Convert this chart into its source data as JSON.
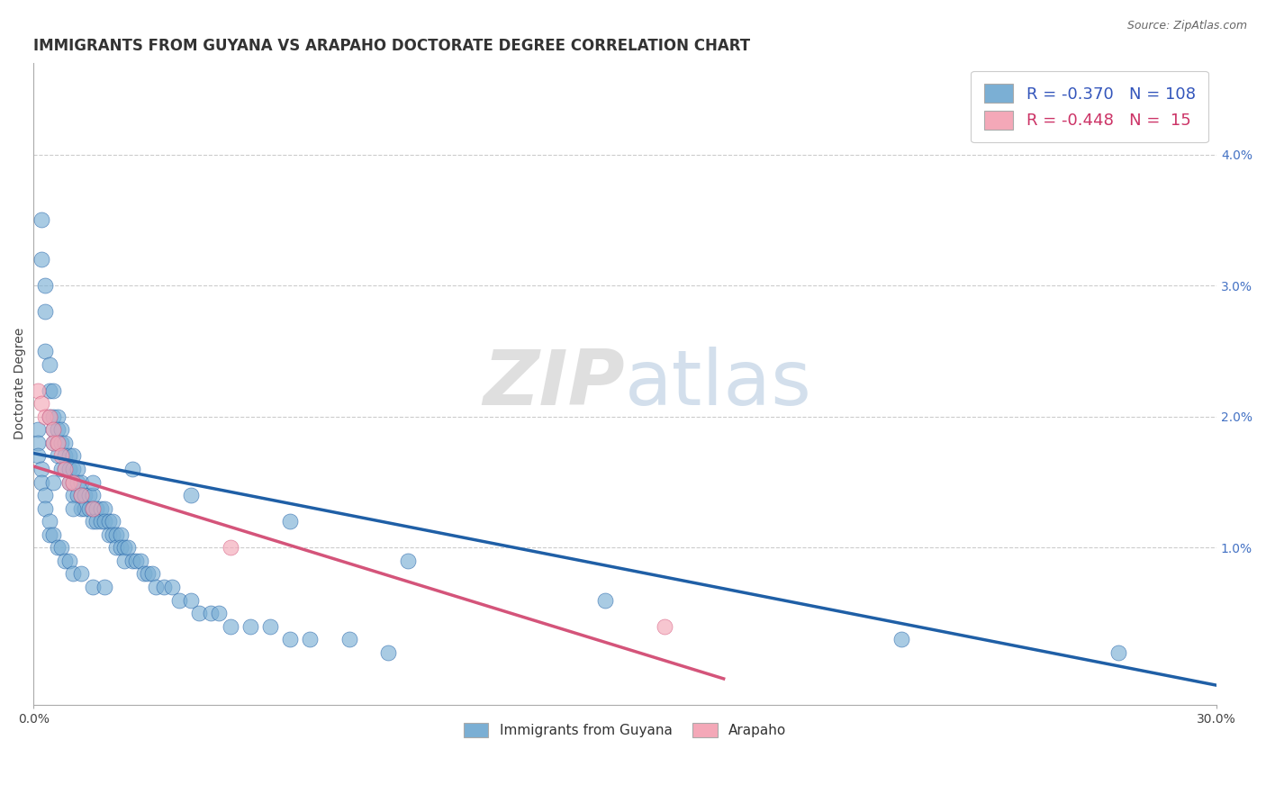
{
  "title": "IMMIGRANTS FROM GUYANA VS ARAPAHO DOCTORATE DEGREE CORRELATION CHART",
  "source": "Source: ZipAtlas.com",
  "ylabel": "Doctorate Degree",
  "right_yticks": [
    "4.0%",
    "3.0%",
    "2.0%",
    "1.0%"
  ],
  "right_ytick_vals": [
    0.04,
    0.03,
    0.02,
    0.01
  ],
  "xlim": [
    0.0,
    0.3
  ],
  "ylim": [
    -0.002,
    0.047
  ],
  "blue_color": "#7BAFD4",
  "blue_color_dark": "#1F5FA6",
  "pink_color": "#F4A8B8",
  "pink_color_dark": "#D4547A",
  "r_blue": -0.37,
  "n_blue": 108,
  "r_pink": -0.448,
  "n_pink": 15,
  "legend_label_blue": "Immigrants from Guyana",
  "legend_label_pink": "Arapaho",
  "blue_trend_x0": 0.0,
  "blue_trend_y0": 0.0172,
  "blue_trend_x1": 0.3,
  "blue_trend_y1": -0.0005,
  "pink_trend_x0": 0.0,
  "pink_trend_y0": 0.0162,
  "pink_trend_x1": 0.175,
  "pink_trend_y1": 0.0,
  "grid_color": "#CCCCCC",
  "background_color": "#FFFFFF",
  "title_fontsize": 12,
  "axis_label_fontsize": 10,
  "tick_fontsize": 10,
  "blue_scatter_x": [
    0.002,
    0.002,
    0.003,
    0.003,
    0.003,
    0.004,
    0.004,
    0.004,
    0.005,
    0.005,
    0.005,
    0.005,
    0.006,
    0.006,
    0.006,
    0.006,
    0.007,
    0.007,
    0.007,
    0.008,
    0.008,
    0.008,
    0.009,
    0.009,
    0.009,
    0.01,
    0.01,
    0.01,
    0.01,
    0.011,
    0.011,
    0.011,
    0.012,
    0.012,
    0.012,
    0.013,
    0.013,
    0.014,
    0.014,
    0.015,
    0.015,
    0.015,
    0.016,
    0.016,
    0.017,
    0.017,
    0.018,
    0.018,
    0.019,
    0.019,
    0.02,
    0.02,
    0.021,
    0.021,
    0.022,
    0.022,
    0.023,
    0.023,
    0.024,
    0.025,
    0.026,
    0.027,
    0.028,
    0.029,
    0.03,
    0.031,
    0.033,
    0.035,
    0.037,
    0.04,
    0.042,
    0.045,
    0.047,
    0.05,
    0.055,
    0.06,
    0.065,
    0.07,
    0.08,
    0.09,
    0.001,
    0.001,
    0.001,
    0.002,
    0.002,
    0.003,
    0.003,
    0.004,
    0.004,
    0.005,
    0.006,
    0.007,
    0.008,
    0.009,
    0.01,
    0.012,
    0.015,
    0.018,
    0.22,
    0.275,
    0.145,
    0.095,
    0.065,
    0.04,
    0.025,
    0.015,
    0.01,
    0.005
  ],
  "blue_scatter_y": [
    0.035,
    0.032,
    0.03,
    0.028,
    0.025,
    0.024,
    0.022,
    0.02,
    0.022,
    0.02,
    0.019,
    0.018,
    0.02,
    0.019,
    0.018,
    0.017,
    0.019,
    0.018,
    0.016,
    0.018,
    0.017,
    0.016,
    0.017,
    0.016,
    0.015,
    0.017,
    0.016,
    0.015,
    0.014,
    0.016,
    0.015,
    0.014,
    0.015,
    0.014,
    0.013,
    0.014,
    0.013,
    0.014,
    0.013,
    0.014,
    0.013,
    0.012,
    0.013,
    0.012,
    0.013,
    0.012,
    0.013,
    0.012,
    0.012,
    0.011,
    0.012,
    0.011,
    0.011,
    0.01,
    0.011,
    0.01,
    0.01,
    0.009,
    0.01,
    0.009,
    0.009,
    0.009,
    0.008,
    0.008,
    0.008,
    0.007,
    0.007,
    0.007,
    0.006,
    0.006,
    0.005,
    0.005,
    0.005,
    0.004,
    0.004,
    0.004,
    0.003,
    0.003,
    0.003,
    0.002,
    0.019,
    0.018,
    0.017,
    0.016,
    0.015,
    0.014,
    0.013,
    0.012,
    0.011,
    0.011,
    0.01,
    0.01,
    0.009,
    0.009,
    0.008,
    0.008,
    0.007,
    0.007,
    0.003,
    0.002,
    0.006,
    0.009,
    0.012,
    0.014,
    0.016,
    0.015,
    0.013,
    0.015
  ],
  "pink_scatter_x": [
    0.001,
    0.002,
    0.003,
    0.004,
    0.005,
    0.005,
    0.006,
    0.007,
    0.008,
    0.009,
    0.01,
    0.012,
    0.015,
    0.05,
    0.16
  ],
  "pink_scatter_y": [
    0.022,
    0.021,
    0.02,
    0.02,
    0.019,
    0.018,
    0.018,
    0.017,
    0.016,
    0.015,
    0.015,
    0.014,
    0.013,
    0.01,
    0.004
  ]
}
